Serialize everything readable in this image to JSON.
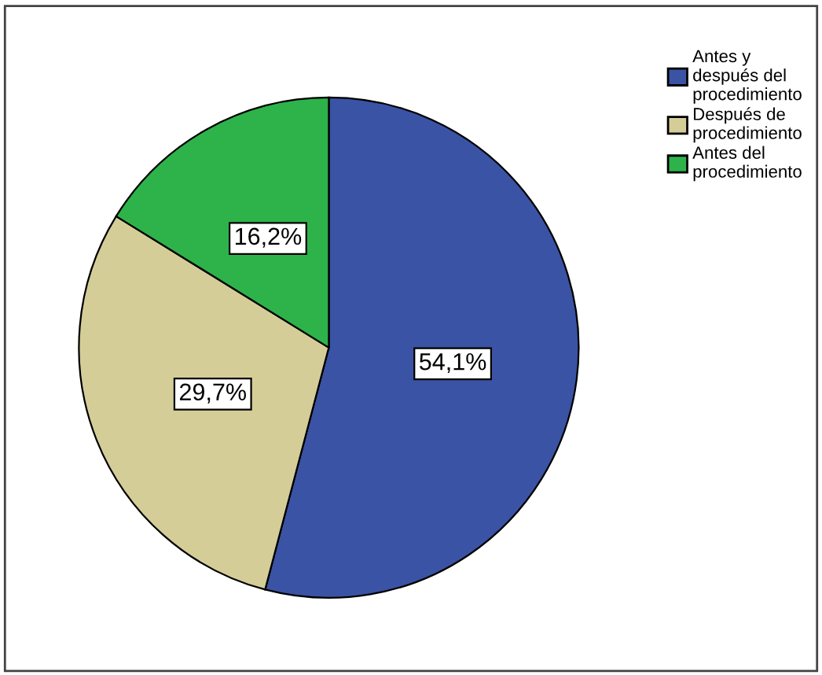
{
  "chart_data": {
    "type": "pie",
    "categories": [
      "Antes y\ndespués del\nprocedimiento",
      "Después de\nprocedimiento",
      "Antes del\nprocedimiento"
    ],
    "values": [
      54.1,
      29.7,
      16.2
    ],
    "colors": [
      "#3a53a4",
      "#d5cd98",
      "#2db34a"
    ],
    "value_labels": [
      "54,1%",
      "29,7%",
      "16,2%"
    ],
    "legend": "top right"
  }
}
